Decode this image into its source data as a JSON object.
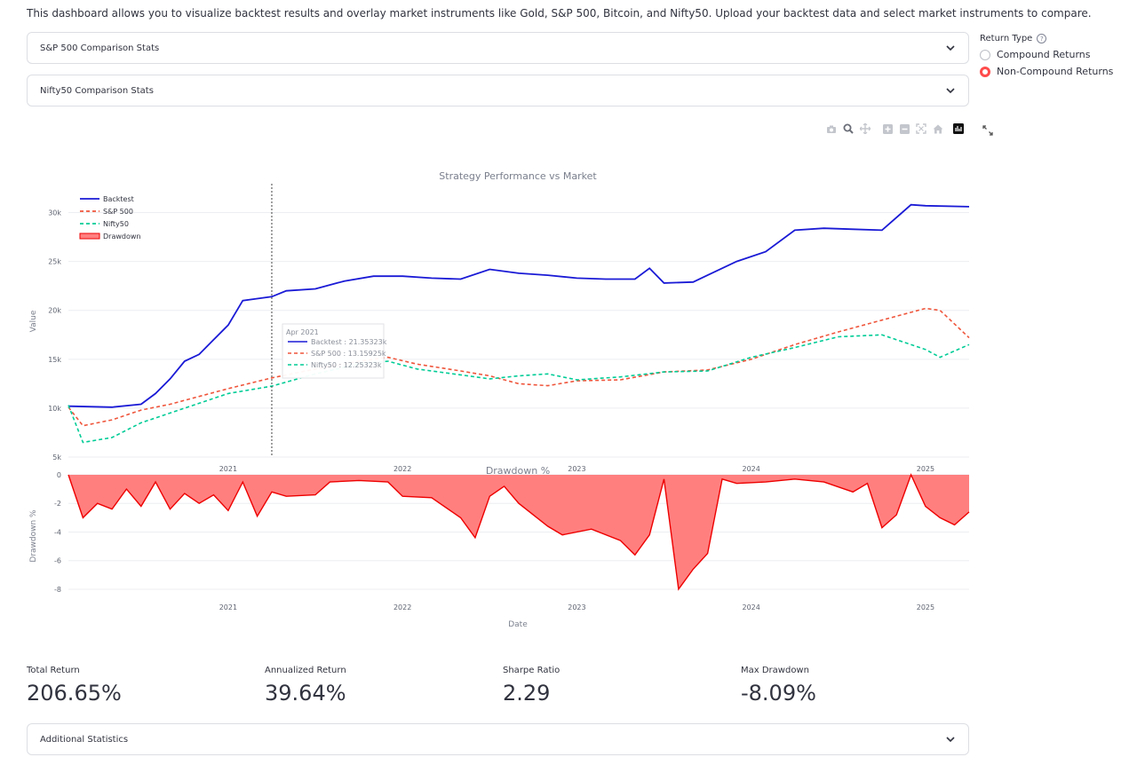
{
  "intro": "This dashboard allows you to visualize backtest results and overlay market instruments like Gold, S&P 500, Bitcoin, and Nifty50. Upload your backtest data and select market instruments to compare.",
  "expanders": [
    {
      "label": "S&P 500 Comparison Stats"
    },
    {
      "label": "Nifty50 Comparison Stats"
    },
    {
      "label": "Additional Statistics"
    }
  ],
  "return_type": {
    "title": "Return Type",
    "help": "?",
    "options": [
      "Compound Returns",
      "Non-Compound Returns"
    ],
    "selected": "Non-Compound Returns"
  },
  "toolbar_icons": [
    "camera-icon",
    "zoom-icon",
    "pan-icon",
    "zoom-in-icon",
    "zoom-out-icon",
    "autoscale-icon",
    "reset-axes-icon",
    "plotly-logo-icon"
  ],
  "colors": {
    "backtest": "#1a1ad6",
    "sp500": "#ef553b",
    "nifty": "#00cc96",
    "drawdown_fill": "#ff7f7f",
    "drawdown_line": "#ee0000",
    "accent": "#ff4b4b"
  },
  "chart_data": [
    {
      "type": "line",
      "title": "Strategy Performance vs Market",
      "ylabel": "Value",
      "xlabel": "",
      "x_ticks": [
        "2021",
        "2022",
        "2023",
        "2024",
        "2025"
      ],
      "y_ticks": [
        "5k",
        "10k",
        "15k",
        "20k",
        "25k",
        "30k"
      ],
      "ylim": [
        5000,
        32500
      ],
      "xlim": [
        "2020-02",
        "2025-04"
      ],
      "legend": {
        "placement": "top-left",
        "entries": [
          "Backtest",
          "S&P 500",
          "Nifty50",
          "Drawdown"
        ]
      },
      "series": [
        {
          "name": "Backtest",
          "style": "solid",
          "points": [
            [
              "2020-02",
              10200
            ],
            [
              "2020-05",
              10100
            ],
            [
              "2020-07",
              10400
            ],
            [
              "2020-08",
              11500
            ],
            [
              "2020-09",
              13000
            ],
            [
              "2020-10",
              14800
            ],
            [
              "2020-11",
              15500
            ],
            [
              "2020-12",
              17000
            ],
            [
              "2021-01",
              18500
            ],
            [
              "2021-02",
              21000
            ],
            [
              "2021-03",
              21200
            ],
            [
              "2021-04",
              21400
            ],
            [
              "2021-05",
              22000
            ],
            [
              "2021-07",
              22200
            ],
            [
              "2021-09",
              23000
            ],
            [
              "2021-11",
              23500
            ],
            [
              "2022-01",
              23500
            ],
            [
              "2022-03",
              23300
            ],
            [
              "2022-05",
              23200
            ],
            [
              "2022-07",
              24200
            ],
            [
              "2022-09",
              23800
            ],
            [
              "2022-11",
              23600
            ],
            [
              "2023-01",
              23300
            ],
            [
              "2023-03",
              23200
            ],
            [
              "2023-05",
              23200
            ],
            [
              "2023-06",
              24300
            ],
            [
              "2023-07",
              22800
            ],
            [
              "2023-09",
              22900
            ],
            [
              "2023-10",
              23600
            ],
            [
              "2023-12",
              25000
            ],
            [
              "2024-02",
              26000
            ],
            [
              "2024-04",
              28200
            ],
            [
              "2024-06",
              28400
            ],
            [
              "2024-08",
              28300
            ],
            [
              "2024-10",
              28200
            ],
            [
              "2024-12",
              30800
            ],
            [
              "2025-01",
              30700
            ],
            [
              "2025-04",
              30600
            ]
          ]
        },
        {
          "name": "S&P 500",
          "style": "dash",
          "points": [
            [
              "2020-02",
              10100
            ],
            [
              "2020-03",
              8200
            ],
            [
              "2020-05",
              8800
            ],
            [
              "2020-07",
              9800
            ],
            [
              "2020-09",
              10400
            ],
            [
              "2020-11",
              11200
            ],
            [
              "2021-01",
              12000
            ],
            [
              "2021-04",
              13100
            ],
            [
              "2021-07",
              14000
            ],
            [
              "2021-10",
              14800
            ],
            [
              "2021-12",
              15200
            ],
            [
              "2022-02",
              14500
            ],
            [
              "2022-05",
              13800
            ],
            [
              "2022-07",
              13300
            ],
            [
              "2022-09",
              12500
            ],
            [
              "2022-11",
              12300
            ],
            [
              "2023-01",
              12800
            ],
            [
              "2023-04",
              12900
            ],
            [
              "2023-07",
              13700
            ],
            [
              "2023-10",
              13900
            ],
            [
              "2024-01",
              15000
            ],
            [
              "2024-04",
              16500
            ],
            [
              "2024-07",
              17800
            ],
            [
              "2024-10",
              19000
            ],
            [
              "2025-01",
              20200
            ],
            [
              "2025-02",
              20000
            ],
            [
              "2025-04",
              17200
            ]
          ]
        },
        {
          "name": "Nifty50",
          "style": "dash",
          "points": [
            [
              "2020-02",
              10300
            ],
            [
              "2020-03",
              6500
            ],
            [
              "2020-05",
              7000
            ],
            [
              "2020-07",
              8500
            ],
            [
              "2020-09",
              9500
            ],
            [
              "2020-11",
              10500
            ],
            [
              "2021-01",
              11500
            ],
            [
              "2021-04",
              12250
            ],
            [
              "2021-07",
              13500
            ],
            [
              "2021-10",
              14500
            ],
            [
              "2021-12",
              14800
            ],
            [
              "2022-02",
              14000
            ],
            [
              "2022-05",
              13400
            ],
            [
              "2022-07",
              13000
            ],
            [
              "2022-09",
              13300
            ],
            [
              "2022-11",
              13500
            ],
            [
              "2023-01",
              12900
            ],
            [
              "2023-04",
              13200
            ],
            [
              "2023-07",
              13700
            ],
            [
              "2023-10",
              13800
            ],
            [
              "2024-01",
              15200
            ],
            [
              "2024-04",
              16200
            ],
            [
              "2024-07",
              17300
            ],
            [
              "2024-10",
              17500
            ],
            [
              "2025-01",
              16000
            ],
            [
              "2025-02",
              15200
            ],
            [
              "2025-04",
              16500
            ]
          ]
        }
      ],
      "hover": {
        "date": "Apr 2021",
        "lines": [
          {
            "name": "Backtest",
            "text": "Backtest : 21.35323k"
          },
          {
            "name": "S&P 500",
            "text": "S&P 500 : 13.15925k"
          },
          {
            "name": "Nifty50",
            "text": "Nifty50 : 12.25323k"
          }
        ]
      }
    },
    {
      "type": "area",
      "title": "Drawdown %",
      "xlabel": "Date",
      "ylabel": "Drawdown %",
      "x_ticks": [
        "2021",
        "2022",
        "2023",
        "2024",
        "2025"
      ],
      "y_ticks": [
        "0",
        "-2",
        "-4",
        "-6",
        "-8"
      ],
      "ylim": [
        -8.5,
        0
      ],
      "series": [
        {
          "name": "Drawdown",
          "points": [
            [
              "2020-02",
              0
            ],
            [
              "2020-03",
              -3
            ],
            [
              "2020-04",
              -2
            ],
            [
              "2020-05",
              -2.4
            ],
            [
              "2020-06",
              -1
            ],
            [
              "2020-07",
              -2.2
            ],
            [
              "2020-08",
              -0.5
            ],
            [
              "2020-09",
              -2.4
            ],
            [
              "2020-10",
              -1.3
            ],
            [
              "2020-11",
              -2
            ],
            [
              "2020-12",
              -1.4
            ],
            [
              "2021-01",
              -2.5
            ],
            [
              "2021-02",
              -0.5
            ],
            [
              "2021-03",
              -2.9
            ],
            [
              "2021-04",
              -1.2
            ],
            [
              "2021-05",
              -1.5
            ],
            [
              "2021-07",
              -1.4
            ],
            [
              "2021-08",
              -0.5
            ],
            [
              "2021-10",
              -0.4
            ],
            [
              "2021-12",
              -0.5
            ],
            [
              "2022-01",
              -1.5
            ],
            [
              "2022-03",
              -1.6
            ],
            [
              "2022-05",
              -3
            ],
            [
              "2022-06",
              -4.4
            ],
            [
              "2022-07",
              -1.5
            ],
            [
              "2022-08",
              -0.8
            ],
            [
              "2022-09",
              -2
            ],
            [
              "2022-11",
              -3.6
            ],
            [
              "2022-12",
              -4.2
            ],
            [
              "2023-02",
              -3.8
            ],
            [
              "2023-04",
              -4.6
            ],
            [
              "2023-05",
              -5.6
            ],
            [
              "2023-06",
              -4.2
            ],
            [
              "2023-07",
              -0.3
            ],
            [
              "2023-08",
              -8
            ],
            [
              "2023-09",
              -6.6
            ],
            [
              "2023-10",
              -5.5
            ],
            [
              "2023-11",
              -0.3
            ],
            [
              "2023-12",
              -0.6
            ],
            [
              "2024-02",
              -0.5
            ],
            [
              "2024-04",
              -0.3
            ],
            [
              "2024-06",
              -0.5
            ],
            [
              "2024-08",
              -1.2
            ],
            [
              "2024-09",
              -0.6
            ],
            [
              "2024-10",
              -3.7
            ],
            [
              "2024-11",
              -2.8
            ],
            [
              "2024-12",
              0
            ],
            [
              "2025-01",
              -2.2
            ],
            [
              "2025-02",
              -3
            ],
            [
              "2025-03",
              -3.5
            ],
            [
              "2025-04",
              -2.6
            ]
          ]
        }
      ]
    }
  ],
  "metrics": [
    {
      "label": "Total Return",
      "value": "206.65%"
    },
    {
      "label": "Annualized Return",
      "value": "39.64%"
    },
    {
      "label": "Sharpe Ratio",
      "value": "2.29"
    },
    {
      "label": "Max Drawdown",
      "value": "-8.09%"
    }
  ]
}
